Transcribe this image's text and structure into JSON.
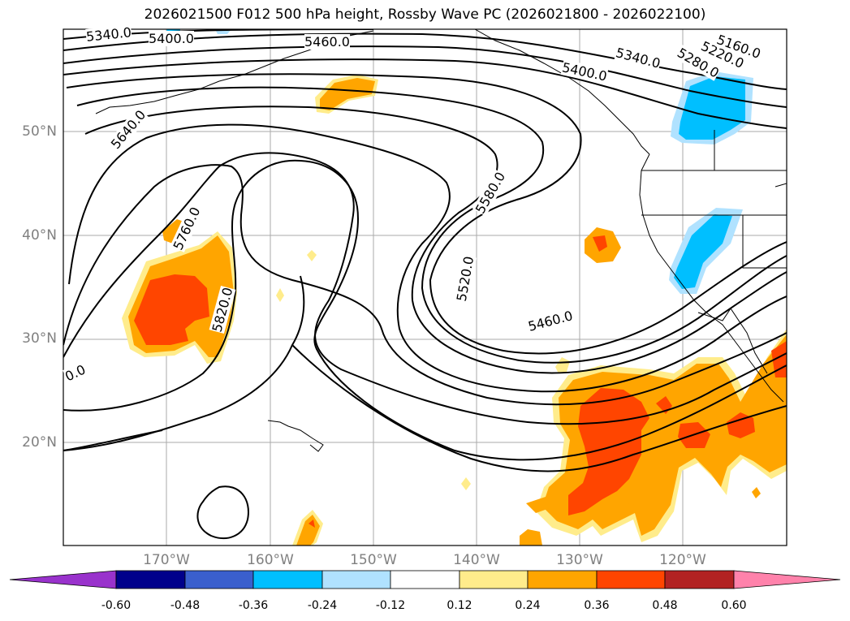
{
  "title": "2026021500 F012 500 hPa height, Rossby Wave PC (2026021800 - 2026022100)",
  "lat_labels": [
    "50°N",
    "40°N",
    "30°N",
    "20°N"
  ],
  "lon_labels": [
    "170°W",
    "160°W",
    "150°W",
    "140°W",
    "130°W",
    "120°W"
  ],
  "contour_labels": [
    "5340.0",
    "5400.0",
    "5460.0",
    "5640.0",
    "5760.0",
    "5820.0",
    "5580.0",
    "5520.0",
    "5460.0",
    "5400.0",
    "5340.0",
    "5280.0",
    "5220.0",
    "5160.0",
    "0.0"
  ],
  "colorbar": {
    "tick_labels": [
      "-0.60",
      "-0.48",
      "-0.36",
      "-0.24",
      "-0.12",
      "0.12",
      "0.24",
      "0.36",
      "0.48",
      "0.60"
    ],
    "colors": [
      "#9932cc",
      "#00008b",
      "#3a5fcd",
      "#00bfff",
      "#b0e2ff",
      "#ffffff",
      "#ffec8b",
      "#ffa500",
      "#ff4500",
      "#b22222",
      "#ff82ab"
    ]
  }
}
